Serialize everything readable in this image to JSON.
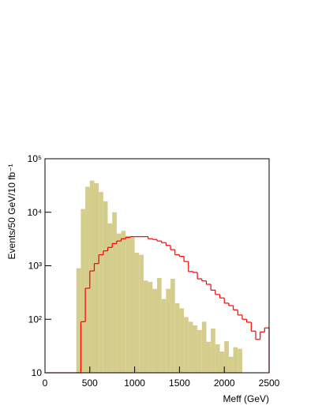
{
  "chart_data": {
    "type": "histogram",
    "x_label": "Meff (GeV)",
    "y_label": "Events/50 GeV/10 fb⁻¹",
    "log_y": true,
    "bins": [
      0,
      50,
      100,
      150,
      200,
      250,
      300,
      350,
      400,
      450,
      500,
      550,
      600,
      650,
      700,
      750,
      800,
      850,
      900,
      950,
      1000,
      1050,
      1100,
      1150,
      1200,
      1250,
      1300,
      1350,
      1400,
      1450,
      1500,
      1550,
      1600,
      1650,
      1700,
      1750,
      1800,
      1850,
      1900,
      1950,
      2000,
      2050,
      2100,
      2150,
      2200,
      2250,
      2300,
      2350,
      2400,
      2450,
      2500
    ],
    "series": [
      {
        "style": "filled",
        "color": "#d4cd8b",
        "values": [
          null,
          null,
          null,
          null,
          null,
          null,
          null,
          900,
          11500,
          30000,
          39000,
          35000,
          24000,
          16000,
          6200,
          10000,
          4000,
          4500,
          3600,
          3400,
          1750,
          1600,
          530,
          500,
          370,
          590,
          240,
          370,
          570,
          200,
          160,
          110,
          90,
          77,
          63,
          90,
          38,
          67,
          34,
          25,
          39,
          20,
          30,
          28,
          null,
          null,
          null,
          null,
          null,
          null
        ]
      },
      {
        "style": "step",
        "color": "#ff0000",
        "values": [
          10,
          10,
          10,
          10,
          10,
          10,
          10,
          10,
          90,
          380,
          800,
          1100,
          1600,
          1900,
          2200,
          2600,
          2900,
          3200,
          3400,
          3500,
          3500,
          3500,
          3500,
          3200,
          3100,
          2900,
          2700,
          2400,
          2000,
          1600,
          1500,
          1200,
          780,
          750,
          570,
          520,
          450,
          350,
          290,
          250,
          200,
          180,
          150,
          120,
          100,
          88,
          60,
          42,
          58,
          69
        ]
      }
    ],
    "xlim": [
      0,
      2500
    ],
    "xticks": [
      0,
      500,
      1000,
      1500,
      2000,
      2500
    ],
    "ylim": [
      10,
      100000
    ],
    "yticks": [
      10,
      {
        "value": 100,
        "label": "10²"
      },
      {
        "value": 1000,
        "label": "10³"
      },
      {
        "value": 10000,
        "label": "10⁴"
      },
      {
        "value": 100000,
        "label": "10⁵"
      }
    ]
  }
}
